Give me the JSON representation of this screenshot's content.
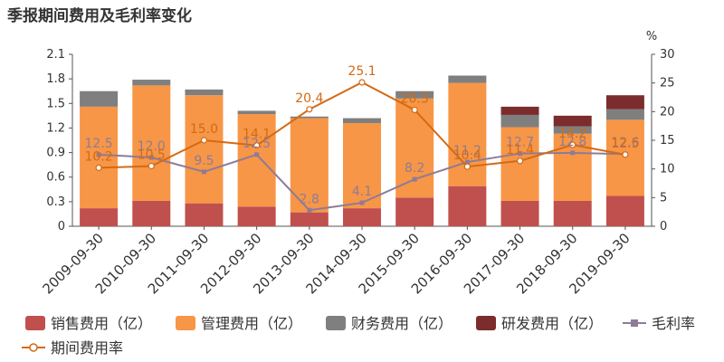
{
  "title": "季报期间费用及毛利率变化",
  "right_unit": "%",
  "chart_data": {
    "type": "bar",
    "title": "季报期间费用及毛利率变化",
    "categories": [
      "2009-09-30",
      "2010-09-30",
      "2011-09-30",
      "2012-09-30",
      "2013-09-30",
      "2014-09-30",
      "2015-09-30",
      "2016-09-30",
      "2017-09-30",
      "2018-09-30",
      "2019-09-30"
    ],
    "stacked": true,
    "series": [
      {
        "name": "销售费用（亿）",
        "kind": "bar",
        "axis": "left",
        "color": "#c0504d",
        "values": [
          0.22,
          0.31,
          0.28,
          0.24,
          0.17,
          0.22,
          0.35,
          0.49,
          0.31,
          0.31,
          0.37
        ]
      },
      {
        "name": "管理费用（亿）",
        "kind": "bar",
        "axis": "left",
        "color": "#f79646",
        "values": [
          1.24,
          1.41,
          1.32,
          1.13,
          1.15,
          1.04,
          1.21,
          1.26,
          0.9,
          0.82,
          0.93
        ]
      },
      {
        "name": "财务费用（亿）",
        "kind": "bar",
        "axis": "left",
        "color": "#7f7f7f",
        "values": [
          0.19,
          0.07,
          0.07,
          0.04,
          0.02,
          0.06,
          0.09,
          0.09,
          0.15,
          0.09,
          0.13
        ]
      },
      {
        "name": "研发费用（亿）",
        "kind": "bar",
        "axis": "left",
        "color": "#7b2c2c",
        "values": [
          0,
          0,
          0,
          0,
          0,
          0,
          0,
          0,
          0.1,
          0.13,
          0.17
        ]
      },
      {
        "name": "毛利率",
        "kind": "line",
        "axis": "right",
        "color": "#8e7b98",
        "values": [
          12.5,
          12.0,
          9.5,
          12.5,
          2.8,
          4.1,
          8.2,
          11.2,
          12.7,
          12.8,
          12.6
        ]
      },
      {
        "name": "期间费用率",
        "kind": "line",
        "axis": "right",
        "color": "#d36a14",
        "values": [
          10.2,
          10.5,
          15.0,
          14.1,
          20.4,
          25.1,
          20.3,
          10.4,
          11.4,
          14.2,
          12.5
        ]
      }
    ],
    "data_labels": {
      "毛利率": [
        "12.5",
        "12.0",
        "9.5",
        "12.5",
        "2.8",
        "4.1",
        "8.2",
        "11.2",
        "12.7",
        "12.8",
        "12.6"
      ],
      "期间费用率": [
        "10.2",
        "10.5",
        "15.0",
        "14.1",
        "20.4",
        "25.1",
        "20.3",
        "10.4",
        "11.4",
        "14.2",
        "12.5"
      ]
    },
    "y_left": {
      "ylim": [
        0,
        2.1
      ],
      "ticks": [
        "0",
        "0.3",
        "0.6",
        "0.9",
        "1.2",
        "1.5",
        "1.8",
        "2.1"
      ]
    },
    "y_right": {
      "ylim": [
        0,
        30
      ],
      "ticks": [
        "0",
        "5",
        "10",
        "15",
        "20",
        "25",
        "30"
      ]
    },
    "grid": false,
    "legend_position": "bottom"
  }
}
